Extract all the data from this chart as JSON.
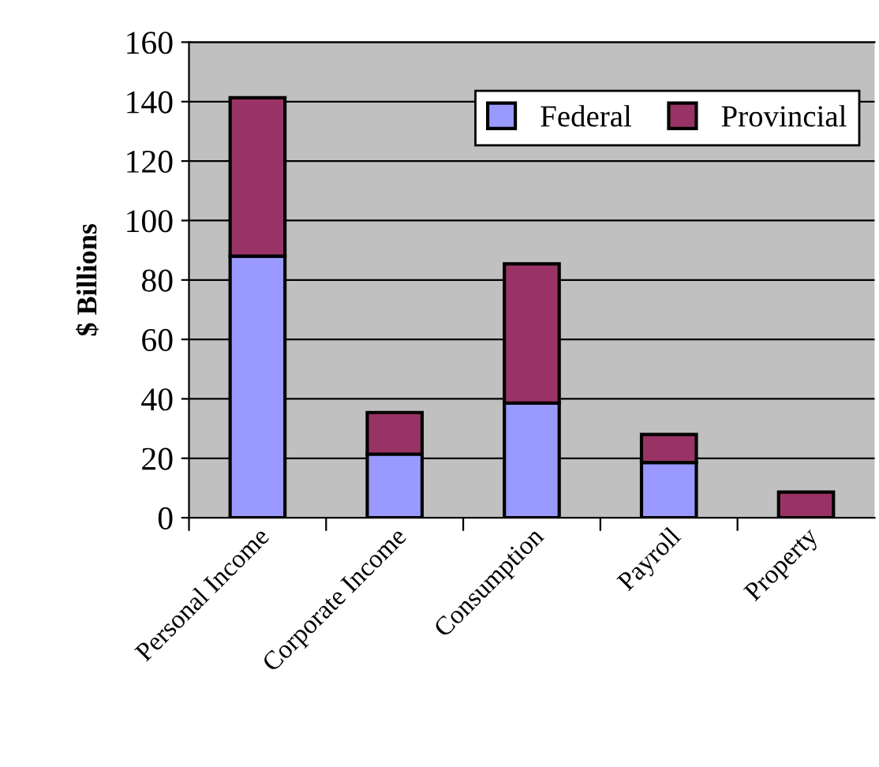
{
  "chart_data": {
    "type": "bar",
    "stacked": true,
    "ylabel": "$ Billions",
    "categories": [
      "Personal Income",
      "Corporate Income",
      "Consumption",
      "Payroll",
      "Property"
    ],
    "series": [
      {
        "name": "Federal",
        "color": "#9999ff",
        "values": [
          88,
          21.4,
          38.6,
          18.6,
          0
        ]
      },
      {
        "name": "Provincial",
        "color": "#993366",
        "values": [
          53.3,
          14,
          46.8,
          9.4,
          8.6
        ]
      }
    ],
    "ylim": [
      0,
      160
    ],
    "yticks": [
      0,
      20,
      40,
      60,
      80,
      100,
      120,
      140,
      160
    ],
    "grid": "y",
    "legend": "top right"
  }
}
